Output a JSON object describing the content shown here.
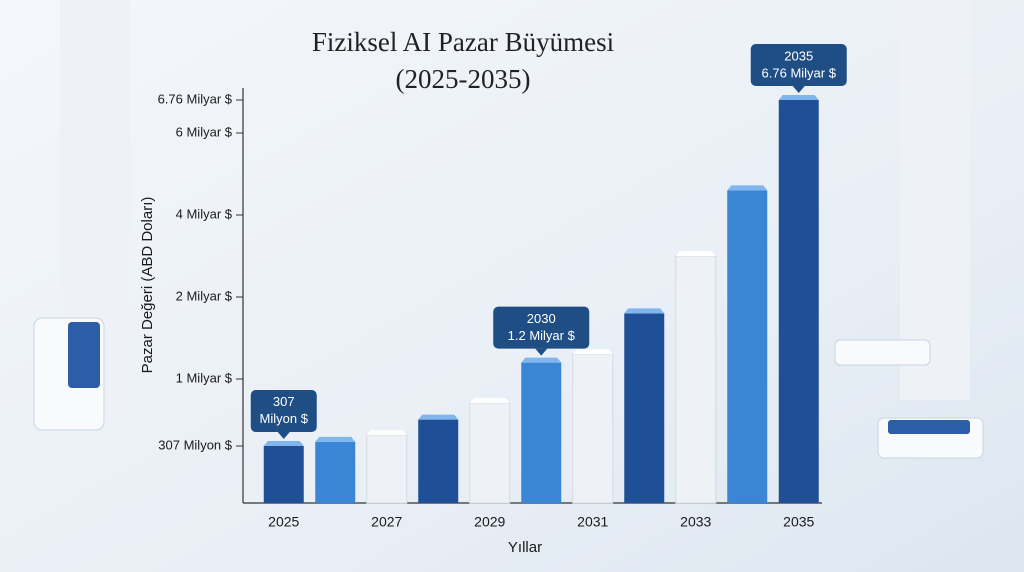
{
  "chart_data": {
    "type": "bar",
    "title": "Fiziksel AI Pazar Büyümesi",
    "subtitle": "(2025-2035)",
    "y_label": "Pazar Değeri (ABD Doları)",
    "x_label": "Yıllar",
    "categories": [
      "2025",
      null,
      "2027",
      null,
      "2029",
      null,
      "2031",
      null,
      "2033",
      null,
      "2035"
    ],
    "values": [
      0.307,
      0.35,
      0.42,
      0.58,
      0.75,
      1.2,
      1.3,
      1.8,
      3.0,
      4.6,
      6.76
    ],
    "value_labels": [
      "307 Milyon $",
      null,
      null,
      null,
      null,
      "1.2 Milyar $",
      null,
      null,
      null,
      null,
      "6.76 Milyar $"
    ],
    "callout_titles": [
      null,
      null,
      null,
      null,
      null,
      "2030",
      null,
      null,
      null,
      null,
      "2035"
    ],
    "colors": [
      "#1f4f96",
      "#3a86d4",
      "#eef1f5",
      "#1f4f96",
      "#eef1f5",
      "#3a86d4",
      "#eef1f5",
      "#1f4f96",
      "#eef1f5",
      "#3a86d4",
      "#1f4f96"
    ],
    "ylim": [
      0,
      6.76
    ],
    "yticks": [
      {
        "value": 0.307,
        "label": "307 Milyon $"
      },
      {
        "value": 1,
        "label": "1 Milyar $"
      },
      {
        "value": 2,
        "label": "2 Milyar $"
      },
      {
        "value": 4,
        "label": "4 Milyar $"
      },
      {
        "value": 6,
        "label": "6 Milyar $"
      },
      {
        "value": 6.76,
        "label": "6.76 Milyar $"
      }
    ]
  }
}
